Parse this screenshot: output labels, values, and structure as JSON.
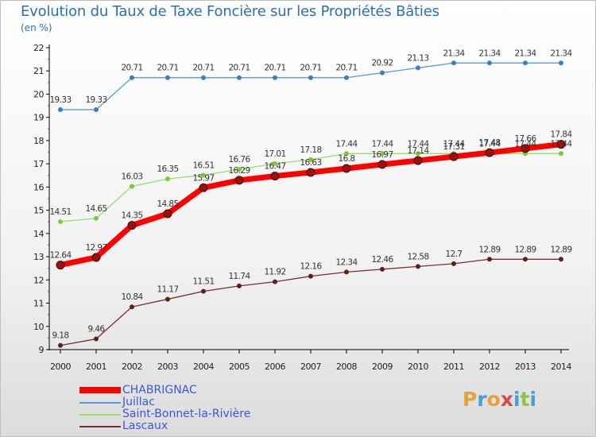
{
  "header": {
    "title": "Evolution du Taux de Taxe Foncière sur les Propriétés Bâties",
    "subtitle": "(en %)"
  },
  "colors": {
    "title": "#2d6fb2",
    "axis": "#000000",
    "tick_text": "#222222",
    "legend_text": "#3f55d8"
  },
  "logo": {
    "text": "Proxiti",
    "letters": [
      "P",
      "r",
      "o",
      "x",
      "i",
      "t",
      "i"
    ],
    "colors": [
      "#e8a13a",
      "#4a9fd8",
      "#e8a13a",
      "#d84a4a",
      "#4a9fd8",
      "#8dc63f",
      "#4a9fd8"
    ]
  },
  "chart_data": {
    "type": "line",
    "title": "Evolution du Taux de Taxe Foncière sur les Propriétés Bâties",
    "ylabel": "(en %)",
    "xlabel": "",
    "ylim": [
      9,
      22
    ],
    "yticks": [
      9,
      10,
      11,
      12,
      13,
      14,
      15,
      16,
      17,
      18,
      19,
      20,
      21,
      22
    ],
    "x": [
      2000,
      2001,
      2002,
      2003,
      2004,
      2005,
      2006,
      2007,
      2008,
      2009,
      2010,
      2011,
      2012,
      2013,
      2014
    ],
    "grid": false,
    "legend_position": "bottom-left",
    "series": [
      {
        "name": "CHABRIGNAC",
        "color": "#ff0000",
        "marker": "#991111",
        "width": 7,
        "values": [
          12.64,
          12.97,
          14.35,
          14.85,
          15.97,
          16.29,
          16.47,
          16.63,
          16.8,
          16.97,
          17.14,
          17.31,
          17.48,
          17.66,
          17.84
        ],
        "labels": [
          "12.64",
          "12.97",
          "14.35",
          "14.85",
          "15.97",
          "16.29",
          "16.47",
          "16.63",
          "16.8",
          "16.97",
          "17.14",
          "17.31",
          "17.48",
          "17.66",
          "17.84"
        ]
      },
      {
        "name": "Juillac",
        "color": "#5b9bd5",
        "marker": "#3a7fbf",
        "width": 1.3,
        "values": [
          19.33,
          19.33,
          20.71,
          20.71,
          20.71,
          20.71,
          20.71,
          20.71,
          20.71,
          20.92,
          21.13,
          21.34,
          21.34,
          21.34,
          21.34
        ],
        "labels": [
          "19.33",
          "19.33",
          "20.71",
          "20.71",
          "20.71",
          "20.71",
          "20.71",
          "20.71",
          "20.71",
          "20.92",
          "21.13",
          "21.34",
          "21.34",
          "21.34",
          "21.34"
        ]
      },
      {
        "name": "Saint-Bonnet-la-Rivière",
        "color": "#99dd66",
        "marker": "#77cc33",
        "width": 1.3,
        "values": [
          14.51,
          14.65,
          16.03,
          16.35,
          16.51,
          16.76,
          17.01,
          17.18,
          17.44,
          17.44,
          17.44,
          17.44,
          17.44,
          17.44,
          17.44
        ],
        "labels": [
          "14.51",
          "14.65",
          "16.03",
          "16.35",
          "16.51",
          "16.76",
          "17.01",
          "17.18",
          "17.44",
          "17.44",
          "17.44",
          "17.44",
          "17.44",
          "17.44",
          "17.44"
        ]
      },
      {
        "name": "Lascaux",
        "color": "#7a2e2e",
        "marker": "#5c1e1e",
        "width": 1.3,
        "values": [
          9.18,
          9.46,
          10.84,
          11.17,
          11.51,
          11.74,
          11.92,
          12.16,
          12.34,
          12.46,
          12.58,
          12.7,
          12.89,
          12.89,
          12.89
        ],
        "labels": [
          "9.18",
          "9.46",
          "10.84",
          "11.17",
          "11.51",
          "11.74",
          "11.92",
          "12.16",
          "12.34",
          "12.46",
          "12.58",
          "12.7",
          "12.89",
          "12.89",
          "12.89"
        ]
      }
    ]
  }
}
